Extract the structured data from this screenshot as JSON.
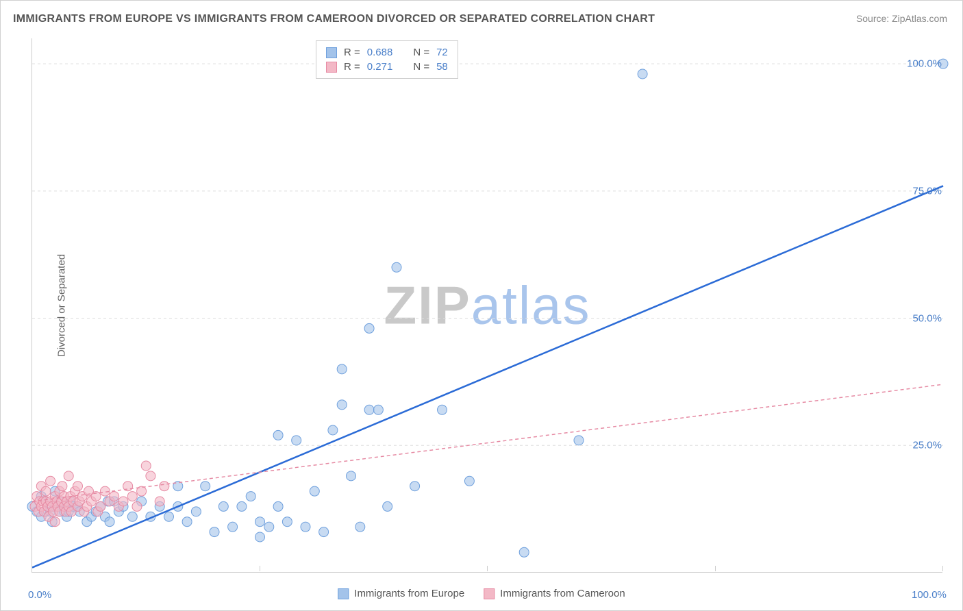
{
  "title": "IMMIGRANTS FROM EUROPE VS IMMIGRANTS FROM CAMEROON DIVORCED OR SEPARATED CORRELATION CHART",
  "source": "Source: ZipAtlas.com",
  "y_axis_label": "Divorced or Separated",
  "watermark_zip": "ZIP",
  "watermark_atlas": "atlas",
  "chart": {
    "type": "scatter",
    "xlim": [
      0,
      100
    ],
    "ylim": [
      0,
      105
    ],
    "x_ticks": [
      0,
      25,
      50,
      75,
      100
    ],
    "x_tick_labels": [
      "0.0%",
      "",
      "",
      "",
      "100.0%"
    ],
    "y_ticks": [
      25,
      50,
      75,
      100
    ],
    "y_tick_labels": [
      "25.0%",
      "50.0%",
      "75.0%",
      "100.0%"
    ],
    "grid_color": "#dddddd",
    "background_color": "#ffffff",
    "series": [
      {
        "name": "Immigrants from Europe",
        "marker_color": "#a3c3ea",
        "marker_border": "#6fa0dd",
        "marker_opacity": 0.6,
        "marker_radius": 7,
        "line_color": "#2b6bd6",
        "line_width": 2.5,
        "line_dash": "none",
        "regression": {
          "x1": 0,
          "y1": 1,
          "x2": 100,
          "y2": 76
        },
        "R": "0.688",
        "N": "72",
        "points": [
          [
            0,
            13
          ],
          [
            0.5,
            12
          ],
          [
            1,
            11
          ],
          [
            1,
            15
          ],
          [
            1.5,
            14
          ],
          [
            1.5,
            12
          ],
          [
            2,
            12
          ],
          [
            2.2,
            10
          ],
          [
            2.5,
            13
          ],
          [
            2.5,
            16
          ],
          [
            3,
            14
          ],
          [
            3,
            12
          ],
          [
            3.5,
            12
          ],
          [
            3.6,
            13
          ],
          [
            3.8,
            11
          ],
          [
            4,
            12
          ],
          [
            4.2,
            14
          ],
          [
            4.5,
            13
          ],
          [
            5,
            13
          ],
          [
            5.2,
            12
          ],
          [
            6,
            10
          ],
          [
            6.5,
            11
          ],
          [
            7,
            12
          ],
          [
            7.5,
            13
          ],
          [
            8,
            11
          ],
          [
            8.3,
            14
          ],
          [
            8.5,
            10
          ],
          [
            9,
            14
          ],
          [
            9.5,
            12
          ],
          [
            10,
            13
          ],
          [
            11,
            11
          ],
          [
            12,
            14
          ],
          [
            13,
            11
          ],
          [
            14,
            13
          ],
          [
            15,
            11
          ],
          [
            16,
            17
          ],
          [
            16,
            13
          ],
          [
            17,
            10
          ],
          [
            18,
            12
          ],
          [
            19,
            17
          ],
          [
            20,
            8
          ],
          [
            21,
            13
          ],
          [
            22,
            9
          ],
          [
            23,
            13
          ],
          [
            24,
            15
          ],
          [
            25,
            7
          ],
          [
            25,
            10
          ],
          [
            26,
            9
          ],
          [
            27,
            13
          ],
          [
            27,
            27
          ],
          [
            28,
            10
          ],
          [
            29,
            26
          ],
          [
            30,
            9
          ],
          [
            31,
            16
          ],
          [
            32,
            8
          ],
          [
            33,
            28
          ],
          [
            34,
            33
          ],
          [
            34,
            40
          ],
          [
            35,
            19
          ],
          [
            36,
            9
          ],
          [
            37,
            48
          ],
          [
            37,
            32
          ],
          [
            38,
            32
          ],
          [
            39,
            13
          ],
          [
            40,
            60
          ],
          [
            42,
            17
          ],
          [
            45,
            32
          ],
          [
            48,
            18
          ],
          [
            54,
            4
          ],
          [
            60,
            26
          ],
          [
            67,
            98
          ],
          [
            100,
            100
          ]
        ]
      },
      {
        "name": "Immigrants from Cameroon",
        "marker_color": "#f3b8c6",
        "marker_border": "#e68aa3",
        "marker_opacity": 0.6,
        "marker_radius": 7,
        "line_color": "#e68aa3",
        "line_width": 1.5,
        "line_dash": "5,4",
        "regression": {
          "x1": 0,
          "y1": 14,
          "x2": 100,
          "y2": 37
        },
        "R": "0.271",
        "N": "58",
        "points": [
          [
            0.3,
            13
          ],
          [
            0.5,
            15
          ],
          [
            0.7,
            12
          ],
          [
            0.8,
            14
          ],
          [
            1,
            13
          ],
          [
            1,
            17
          ],
          [
            1.2,
            14
          ],
          [
            1.3,
            12
          ],
          [
            1.5,
            14
          ],
          [
            1.5,
            16
          ],
          [
            1.7,
            13
          ],
          [
            1.8,
            11
          ],
          [
            2,
            14
          ],
          [
            2,
            18
          ],
          [
            2.2,
            13
          ],
          [
            2.3,
            12
          ],
          [
            2.5,
            15
          ],
          [
            2.5,
            10
          ],
          [
            2.7,
            14
          ],
          [
            2.8,
            13
          ],
          [
            3,
            16
          ],
          [
            3,
            12
          ],
          [
            3.2,
            14
          ],
          [
            3.3,
            17
          ],
          [
            3.5,
            13
          ],
          [
            3.5,
            15
          ],
          [
            3.7,
            12
          ],
          [
            3.8,
            14
          ],
          [
            4,
            13
          ],
          [
            4,
            19
          ],
          [
            4.2,
            15
          ],
          [
            4.3,
            12
          ],
          [
            4.5,
            14
          ],
          [
            4.7,
            16
          ],
          [
            5,
            13
          ],
          [
            5,
            17
          ],
          [
            5.2,
            14
          ],
          [
            5.5,
            15
          ],
          [
            5.7,
            12
          ],
          [
            6,
            13
          ],
          [
            6.2,
            16
          ],
          [
            6.5,
            14
          ],
          [
            7,
            15
          ],
          [
            7.2,
            12
          ],
          [
            7.5,
            13
          ],
          [
            8,
            16
          ],
          [
            8.5,
            14
          ],
          [
            9,
            15
          ],
          [
            9.5,
            13
          ],
          [
            10,
            14
          ],
          [
            10.5,
            17
          ],
          [
            11,
            15
          ],
          [
            11.5,
            13
          ],
          [
            12,
            16
          ],
          [
            12.5,
            21
          ],
          [
            13,
            19
          ],
          [
            14,
            14
          ],
          [
            14.5,
            17
          ]
        ]
      }
    ]
  },
  "stats_labels": {
    "R": "R =",
    "N": "N ="
  },
  "legend_series1": "Immigrants from Europe",
  "legend_series2": "Immigrants from Cameroon"
}
